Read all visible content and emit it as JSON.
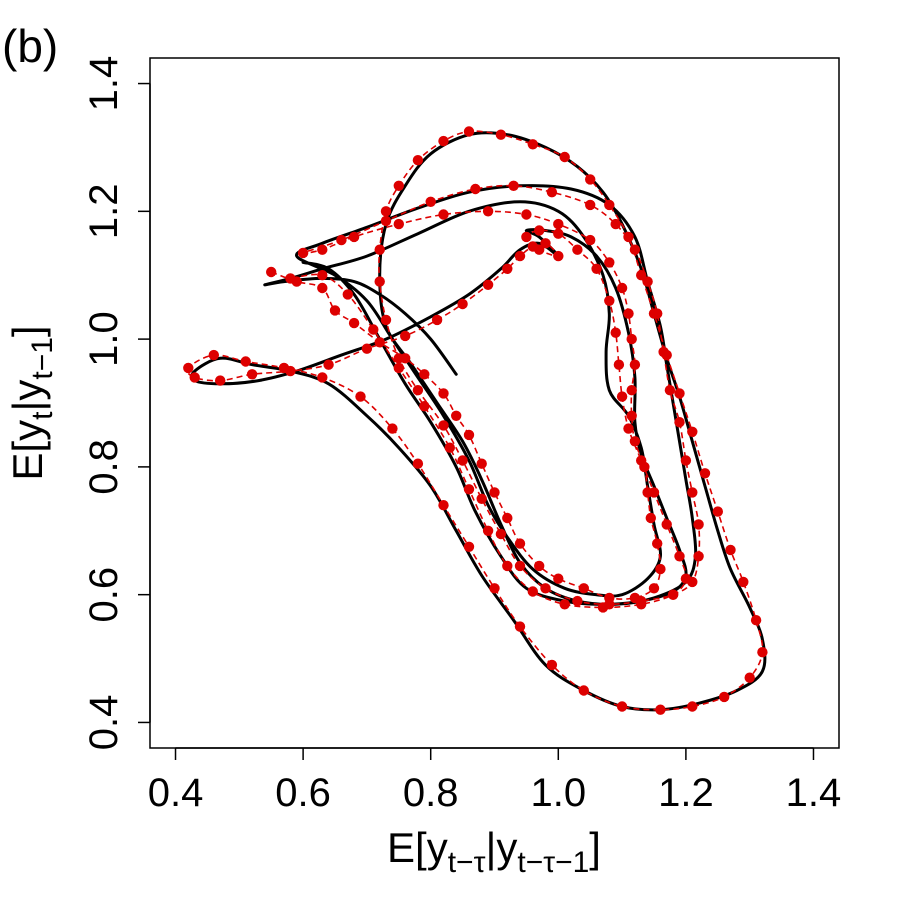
{
  "chart_data": {
    "type": "line",
    "panel_label": "(b)",
    "xlabel": {
      "main": "E[y",
      "sub1": "t−τ",
      "mid": "|y",
      "sub2": "t−τ−1",
      "end": "]"
    },
    "ylabel": {
      "main": "E[y",
      "sub1": "t",
      "mid": "|y",
      "sub2": "t−1",
      "end": "]"
    },
    "xlim": [
      0.36,
      1.44
    ],
    "ylim": [
      0.36,
      1.44
    ],
    "x_ticks": [
      "0.4",
      "0.6",
      "0.8",
      "1.0",
      "1.2",
      "1.4"
    ],
    "y_ticks": [
      "0.4",
      "0.6",
      "0.8",
      "1.0",
      "1.2",
      "1.4"
    ],
    "grid": false,
    "colors": {
      "solid": "#000000",
      "points": "#dd0000",
      "dashed": "#dd0000"
    },
    "series": [
      {
        "name": "solid-trajectory",
        "style": "solid",
        "points": [
          [
            0.84,
            0.945
          ],
          [
            0.8,
            1.0
          ],
          [
            0.76,
            1.04
          ],
          [
            0.72,
            1.07
          ],
          [
            0.68,
            1.09
          ],
          [
            0.63,
            1.095
          ],
          [
            0.57,
            1.09
          ],
          [
            0.54,
            1.085
          ],
          [
            0.58,
            1.095
          ],
          [
            0.63,
            1.11
          ],
          [
            0.7,
            1.13
          ],
          [
            0.78,
            1.165
          ],
          [
            0.86,
            1.2
          ],
          [
            0.94,
            1.215
          ],
          [
            1.0,
            1.2
          ],
          [
            1.04,
            1.16
          ],
          [
            1.07,
            1.1
          ],
          [
            1.08,
            1.04
          ],
          [
            1.075,
            0.98
          ],
          [
            1.08,
            0.92
          ],
          [
            1.11,
            0.88
          ],
          [
            1.13,
            0.83
          ],
          [
            1.14,
            0.77
          ],
          [
            1.15,
            0.71
          ],
          [
            1.16,
            0.66
          ],
          [
            1.14,
            0.625
          ],
          [
            1.1,
            0.6
          ],
          [
            1.06,
            0.6
          ],
          [
            1.01,
            0.61
          ],
          [
            0.96,
            0.64
          ],
          [
            0.92,
            0.69
          ],
          [
            0.89,
            0.74
          ],
          [
            0.86,
            0.81
          ],
          [
            0.82,
            0.88
          ],
          [
            0.78,
            0.94
          ],
          [
            0.74,
            1.0
          ],
          [
            0.7,
            1.06
          ],
          [
            0.65,
            1.1
          ],
          [
            0.59,
            1.13
          ],
          [
            0.63,
            1.15
          ],
          [
            0.7,
            1.175
          ],
          [
            0.78,
            1.205
          ],
          [
            0.86,
            1.23
          ],
          [
            0.94,
            1.24
          ],
          [
            1.02,
            1.235
          ],
          [
            1.08,
            1.21
          ],
          [
            1.12,
            1.16
          ],
          [
            1.14,
            1.09
          ],
          [
            1.16,
            1.02
          ],
          [
            1.17,
            0.96
          ],
          [
            1.18,
            0.9
          ],
          [
            1.19,
            0.84
          ],
          [
            1.2,
            0.78
          ],
          [
            1.21,
            0.72
          ],
          [
            1.215,
            0.66
          ],
          [
            1.2,
            0.62
          ],
          [
            1.15,
            0.595
          ],
          [
            1.09,
            0.585
          ],
          [
            1.03,
            0.59
          ],
          [
            0.98,
            0.61
          ],
          [
            0.94,
            0.65
          ],
          [
            0.91,
            0.71
          ],
          [
            0.88,
            0.78
          ],
          [
            0.85,
            0.84
          ],
          [
            0.81,
            0.9
          ],
          [
            0.77,
            0.96
          ],
          [
            0.73,
            1.02
          ],
          [
            0.72,
            1.1
          ],
          [
            0.73,
            1.18
          ],
          [
            0.76,
            1.24
          ],
          [
            0.8,
            1.29
          ],
          [
            0.86,
            1.32
          ],
          [
            0.92,
            1.32
          ],
          [
            0.98,
            1.3
          ],
          [
            1.03,
            1.27
          ],
          [
            1.07,
            1.23
          ],
          [
            1.1,
            1.18
          ],
          [
            1.13,
            1.11
          ],
          [
            1.15,
            1.04
          ],
          [
            1.17,
            0.97
          ],
          [
            1.19,
            0.91
          ],
          [
            1.21,
            0.84
          ],
          [
            1.23,
            0.77
          ],
          [
            1.25,
            0.7
          ],
          [
            1.27,
            0.64
          ],
          [
            1.3,
            0.58
          ],
          [
            1.32,
            0.53
          ],
          [
            1.32,
            0.48
          ],
          [
            1.28,
            0.45
          ],
          [
            1.22,
            0.43
          ],
          [
            1.16,
            0.42
          ],
          [
            1.1,
            0.425
          ],
          [
            1.04,
            0.45
          ],
          [
            0.98,
            0.49
          ],
          [
            0.93,
            0.56
          ],
          [
            0.88,
            0.63
          ],
          [
            0.84,
            0.7
          ],
          [
            0.8,
            0.77
          ],
          [
            0.75,
            0.83
          ],
          [
            0.7,
            0.88
          ],
          [
            0.64,
            0.93
          ],
          [
            0.58,
            0.95
          ],
          [
            0.52,
            0.96
          ],
          [
            0.47,
            0.97
          ],
          [
            0.43,
            0.95
          ],
          [
            0.43,
            0.935
          ],
          [
            0.47,
            0.93
          ],
          [
            0.53,
            0.935
          ],
          [
            0.59,
            0.95
          ],
          [
            0.66,
            0.975
          ],
          [
            0.73,
            1.0
          ],
          [
            0.8,
            1.035
          ],
          [
            0.86,
            1.07
          ],
          [
            0.91,
            1.11
          ],
          [
            0.94,
            1.14
          ],
          [
            0.97,
            1.15
          ],
          [
            1.0,
            1.13
          ],
          [
            0.97,
            1.16
          ],
          [
            0.95,
            1.17
          ],
          [
            0.98,
            1.17
          ],
          [
            1.02,
            1.16
          ],
          [
            1.06,
            1.13
          ],
          [
            1.09,
            1.08
          ],
          [
            1.11,
            1.01
          ],
          [
            1.12,
            0.94
          ],
          [
            1.12,
            0.87
          ],
          [
            1.13,
            0.82
          ],
          [
            1.15,
            0.77
          ],
          [
            1.17,
            0.72
          ],
          [
            1.19,
            0.67
          ],
          [
            1.2,
            0.63
          ],
          [
            1.18,
            0.605
          ],
          [
            1.13,
            0.59
          ],
          [
            1.07,
            0.585
          ],
          [
            1.01,
            0.59
          ],
          [
            0.95,
            0.61
          ],
          [
            0.91,
            0.66
          ],
          [
            0.87,
            0.73
          ],
          [
            0.84,
            0.8
          ],
          [
            0.8,
            0.87
          ],
          [
            0.76,
            0.93
          ],
          [
            0.72,
            1.0
          ],
          [
            0.68,
            1.07
          ],
          [
            0.64,
            1.11
          ],
          [
            0.6,
            1.12
          ]
        ]
      },
      {
        "name": "red-dotted-trajectory",
        "style": "points-dashed",
        "points": [
          [
            0.55,
            1.105
          ],
          [
            0.59,
            1.09
          ],
          [
            0.63,
            1.08
          ],
          [
            0.65,
            1.045
          ],
          [
            0.68,
            1.025
          ],
          [
            0.72,
            0.995
          ],
          [
            0.76,
            0.97
          ],
          [
            0.79,
            0.945
          ],
          [
            0.82,
            0.915
          ],
          [
            0.84,
            0.88
          ],
          [
            0.86,
            0.85
          ],
          [
            0.88,
            0.805
          ],
          [
            0.9,
            0.76
          ],
          [
            0.92,
            0.72
          ],
          [
            0.94,
            0.68
          ],
          [
            0.97,
            0.645
          ],
          [
            1.0,
            0.625
          ],
          [
            1.04,
            0.61
          ],
          [
            1.08,
            0.595
          ],
          [
            1.12,
            0.595
          ],
          [
            1.15,
            0.61
          ],
          [
            1.16,
            0.64
          ],
          [
            1.155,
            0.68
          ],
          [
            1.145,
            0.72
          ],
          [
            1.14,
            0.76
          ],
          [
            1.135,
            0.8
          ],
          [
            1.12,
            0.84
          ],
          [
            1.115,
            0.88
          ],
          [
            1.115,
            0.92
          ],
          [
            1.12,
            0.96
          ],
          [
            1.115,
            1.0
          ],
          [
            1.11,
            1.04
          ],
          [
            1.1,
            1.08
          ],
          [
            1.08,
            1.12
          ],
          [
            1.05,
            1.155
          ],
          [
            1.0,
            1.18
          ],
          [
            0.95,
            1.195
          ],
          [
            0.89,
            1.2
          ],
          [
            0.82,
            1.195
          ],
          [
            0.75,
            1.18
          ],
          [
            0.68,
            1.16
          ],
          [
            0.63,
            1.14
          ],
          [
            0.6,
            1.135
          ],
          [
            0.66,
            1.155
          ],
          [
            0.73,
            1.185
          ],
          [
            0.8,
            1.215
          ],
          [
            0.87,
            1.235
          ],
          [
            0.93,
            1.24
          ],
          [
            0.99,
            1.23
          ],
          [
            1.05,
            1.21
          ],
          [
            1.09,
            1.18
          ],
          [
            1.12,
            1.14
          ],
          [
            1.14,
            1.09
          ],
          [
            1.155,
            1.04
          ],
          [
            1.165,
            0.98
          ],
          [
            1.175,
            0.92
          ],
          [
            1.19,
            0.87
          ],
          [
            1.2,
            0.81
          ],
          [
            1.21,
            0.76
          ],
          [
            1.22,
            0.71
          ],
          [
            1.22,
            0.66
          ],
          [
            1.21,
            0.62
          ],
          [
            1.18,
            0.6
          ],
          [
            1.13,
            0.59
          ],
          [
            1.08,
            0.585
          ],
          [
            1.03,
            0.59
          ],
          [
            0.98,
            0.61
          ],
          [
            0.94,
            0.645
          ],
          [
            0.91,
            0.695
          ],
          [
            0.88,
            0.75
          ],
          [
            0.85,
            0.81
          ],
          [
            0.82,
            0.865
          ],
          [
            0.78,
            0.92
          ],
          [
            0.75,
            0.97
          ],
          [
            0.73,
            1.03
          ],
          [
            0.72,
            1.09
          ],
          [
            0.72,
            1.14
          ],
          [
            0.73,
            1.2
          ],
          [
            0.75,
            1.24
          ],
          [
            0.78,
            1.28
          ],
          [
            0.82,
            1.31
          ],
          [
            0.86,
            1.325
          ],
          [
            0.91,
            1.32
          ],
          [
            0.96,
            1.305
          ],
          [
            1.01,
            1.285
          ],
          [
            1.05,
            1.25
          ],
          [
            1.08,
            1.21
          ],
          [
            1.11,
            1.16
          ],
          [
            1.13,
            1.1
          ],
          [
            1.15,
            1.04
          ],
          [
            1.17,
            0.975
          ],
          [
            1.19,
            0.915
          ],
          [
            1.21,
            0.855
          ],
          [
            1.23,
            0.79
          ],
          [
            1.25,
            0.73
          ],
          [
            1.27,
            0.67
          ],
          [
            1.29,
            0.62
          ],
          [
            1.31,
            0.56
          ],
          [
            1.32,
            0.51
          ],
          [
            1.3,
            0.47
          ],
          [
            1.26,
            0.44
          ],
          [
            1.21,
            0.425
          ],
          [
            1.16,
            0.42
          ],
          [
            1.1,
            0.425
          ],
          [
            1.04,
            0.45
          ],
          [
            0.99,
            0.49
          ],
          [
            0.94,
            0.55
          ],
          [
            0.9,
            0.61
          ],
          [
            0.86,
            0.675
          ],
          [
            0.82,
            0.74
          ],
          [
            0.78,
            0.805
          ],
          [
            0.74,
            0.86
          ],
          [
            0.69,
            0.91
          ],
          [
            0.63,
            0.94
          ],
          [
            0.57,
            0.955
          ],
          [
            0.51,
            0.965
          ],
          [
            0.46,
            0.975
          ],
          [
            0.42,
            0.955
          ],
          [
            0.43,
            0.94
          ],
          [
            0.47,
            0.935
          ],
          [
            0.52,
            0.945
          ],
          [
            0.58,
            0.95
          ],
          [
            0.64,
            0.96
          ],
          [
            0.7,
            0.985
          ],
          [
            0.76,
            1.005
          ],
          [
            0.81,
            1.03
          ],
          [
            0.85,
            1.055
          ],
          [
            0.89,
            1.085
          ],
          [
            0.92,
            1.11
          ],
          [
            0.94,
            1.13
          ],
          [
            0.96,
            1.145
          ],
          [
            0.98,
            1.15
          ],
          [
            1.0,
            1.13
          ],
          [
            0.97,
            1.14
          ],
          [
            0.95,
            1.16
          ],
          [
            0.97,
            1.17
          ],
          [
            1.0,
            1.165
          ],
          [
            1.03,
            1.14
          ],
          [
            1.06,
            1.11
          ],
          [
            1.08,
            1.06
          ],
          [
            1.09,
            1.01
          ],
          [
            1.095,
            0.96
          ],
          [
            1.1,
            0.91
          ],
          [
            1.11,
            0.86
          ],
          [
            1.13,
            0.81
          ],
          [
            1.15,
            0.76
          ],
          [
            1.17,
            0.71
          ],
          [
            1.19,
            0.66
          ],
          [
            1.2,
            0.625
          ],
          [
            1.18,
            0.6
          ],
          [
            1.13,
            0.585
          ],
          [
            1.07,
            0.58
          ],
          [
            1.01,
            0.585
          ],
          [
            0.96,
            0.605
          ],
          [
            0.92,
            0.645
          ],
          [
            0.89,
            0.7
          ],
          [
            0.86,
            0.765
          ],
          [
            0.83,
            0.83
          ],
          [
            0.79,
            0.895
          ],
          [
            0.75,
            0.955
          ],
          [
            0.71,
            1.015
          ],
          [
            0.67,
            1.07
          ],
          [
            0.63,
            1.1
          ],
          [
            0.58,
            1.095
          ]
        ]
      }
    ]
  }
}
